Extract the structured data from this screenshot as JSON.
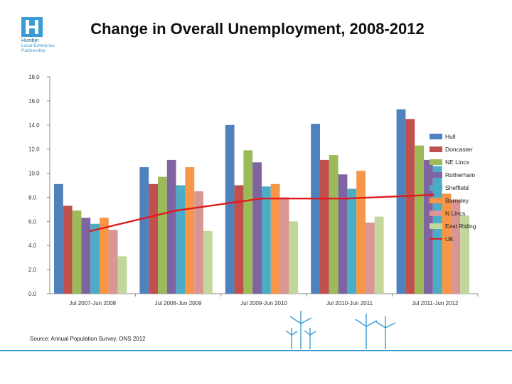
{
  "header": {
    "title": "Change in Overall Unemployment, 2008-2012",
    "logo_lines": [
      "Humber",
      "Local Enterprise",
      "Partnership"
    ]
  },
  "source": "Source: Annual Population Survey, ONS 2012",
  "colors": {
    "Hull": "#4f81bd",
    "Doncaster": "#c0504d",
    "NE Lincs": "#9bbb59",
    "Rotherham": "#8064a2",
    "Sheffield": "#4bacc6",
    "Barnsley": "#f79646",
    "N Lincs": "#d99694",
    "East Riding": "#c3d69b",
    "UK": "#e01b1b",
    "brand": "#3a9bd5"
  },
  "chart_data": {
    "type": "bar",
    "title": "Change in Overall Unemployment, 2008-2012",
    "categories": [
      "Jul 2007-Jun 2008",
      "Jul 2008-Jun 2009",
      "Jul 2009-Jun 2010",
      "Jul 2010-Jun 2011",
      "Jul 2011-Jun 2012"
    ],
    "ylim": [
      0,
      18
    ],
    "yticks": [
      "0.0",
      "2.0",
      "4.0",
      "6.0",
      "8.0",
      "10.0",
      "12.0",
      "14.0",
      "16.0",
      "18.0"
    ],
    "grid": false,
    "legend_position": "right",
    "series": [
      {
        "name": "Hull",
        "values": [
          9.1,
          10.5,
          14.0,
          14.1,
          15.3
        ]
      },
      {
        "name": "Doncaster",
        "values": [
          7.3,
          9.1,
          9.0,
          11.1,
          14.5
        ]
      },
      {
        "name": "NE Lincs",
        "values": [
          6.9,
          9.7,
          11.9,
          11.5,
          12.3
        ]
      },
      {
        "name": "Rotherham",
        "values": [
          6.3,
          11.1,
          10.9,
          9.9,
          11.1
        ]
      },
      {
        "name": "Sheffield",
        "values": [
          5.8,
          9.0,
          8.9,
          8.7,
          10.6
        ]
      },
      {
        "name": "Barnsley",
        "values": [
          6.3,
          10.5,
          9.1,
          10.2,
          8.3
        ]
      },
      {
        "name": "N Lincs",
        "values": [
          5.3,
          8.5,
          8.0,
          5.9,
          7.8
        ]
      },
      {
        "name": "East Riding",
        "values": [
          3.1,
          5.2,
          6.0,
          6.4,
          6.5
        ]
      }
    ],
    "line_series": {
      "name": "UK",
      "values": [
        5.2,
        6.9,
        7.9,
        7.9,
        8.2
      ]
    }
  }
}
